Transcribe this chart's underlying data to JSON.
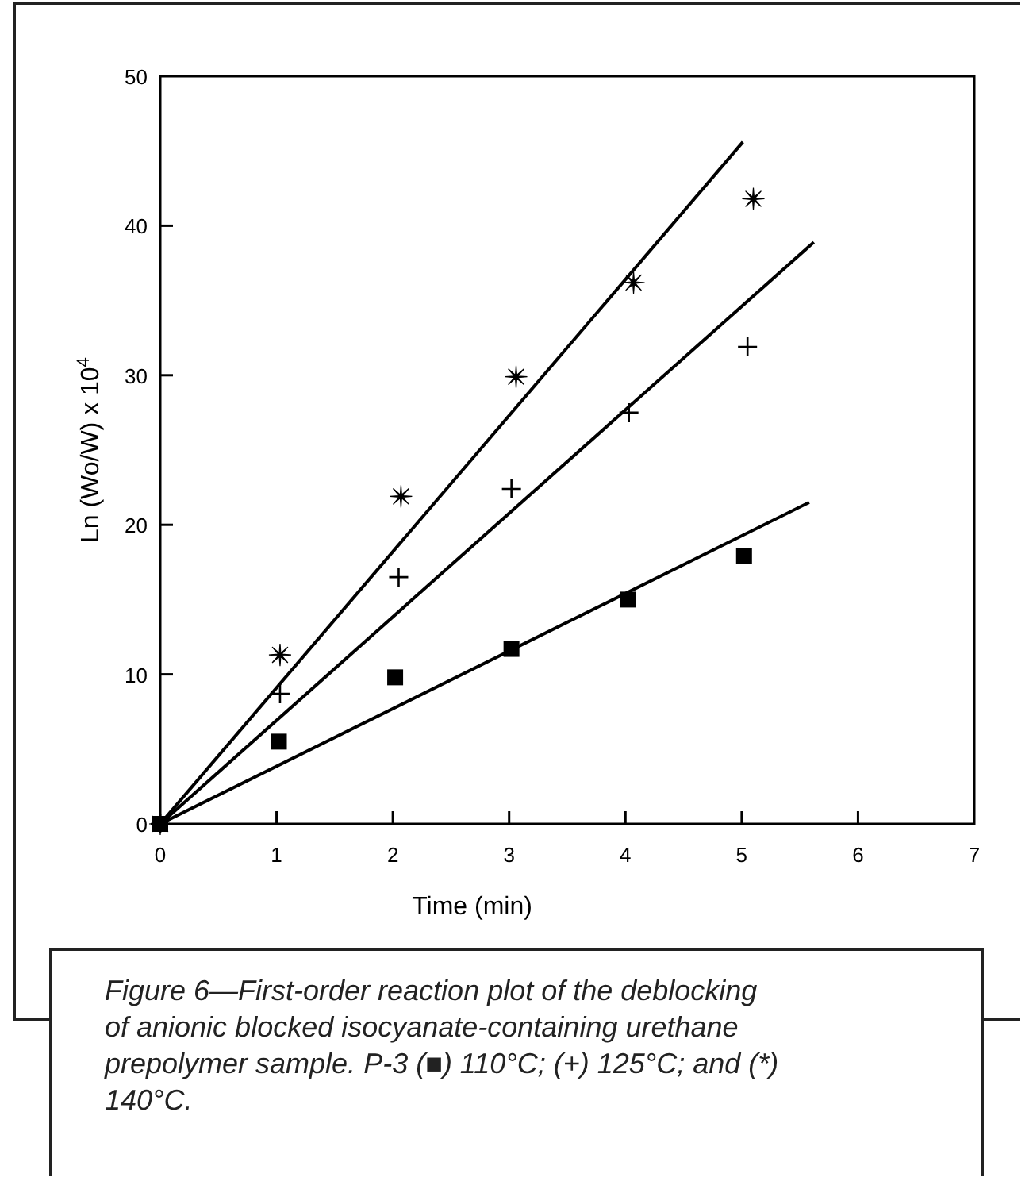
{
  "chart_data": {
    "type": "scatter",
    "xlabel": "Time (min)",
    "ylabel": "Ln (Wo/W) x 10$^{4}$",
    "xlim": [
      0,
      7
    ],
    "ylim": [
      0,
      50
    ],
    "xticks": [
      0,
      1,
      2,
      3,
      4,
      5,
      6,
      7
    ],
    "yticks": [
      0,
      10,
      20,
      30,
      40,
      50
    ],
    "grid": false,
    "series": [
      {
        "marker": "square",
        "color": "#000000",
        "x": [
          0,
          1.02,
          2.02,
          3.02,
          4.02,
          5.02
        ],
        "values": [
          0,
          5.5,
          9.8,
          11.7,
          15.0,
          17.9
        ]
      },
      {
        "marker": "cross",
        "color": "#000000",
        "x": [
          0,
          1.03,
          2.05,
          3.02,
          4.03,
          5.05
        ],
        "values": [
          0,
          8.7,
          16.5,
          22.4,
          27.5,
          31.9
        ]
      },
      {
        "marker": "star",
        "color": "#000000",
        "x": [
          0,
          1.03,
          2.07,
          3.06,
          4.07,
          5.1
        ],
        "values": [
          0,
          11.3,
          21.9,
          29.9,
          36.2,
          41.8
        ]
      },
      {
        "type": "line",
        "line_style": "solid",
        "color": "#000000",
        "x": [
          0,
          5.58
        ],
        "values": [
          0,
          21.5
        ]
      },
      {
        "type": "line",
        "line_style": "solid",
        "color": "#000000",
        "x": [
          0,
          5.62
        ],
        "values": [
          0,
          38.9
        ]
      },
      {
        "type": "line",
        "line_style": "solid",
        "color": "#000000",
        "x": [
          0,
          5.01
        ],
        "values": [
          0,
          45.6
        ]
      }
    ],
    "annotations": [
      "Figure 6—First-order reaction plot of the deblocking of anionic blocked isocyanate-containing urethane prepolymer sample. P-3 (■) 110°C; (+) 125°C; and (*) 140°C."
    ]
  }
}
